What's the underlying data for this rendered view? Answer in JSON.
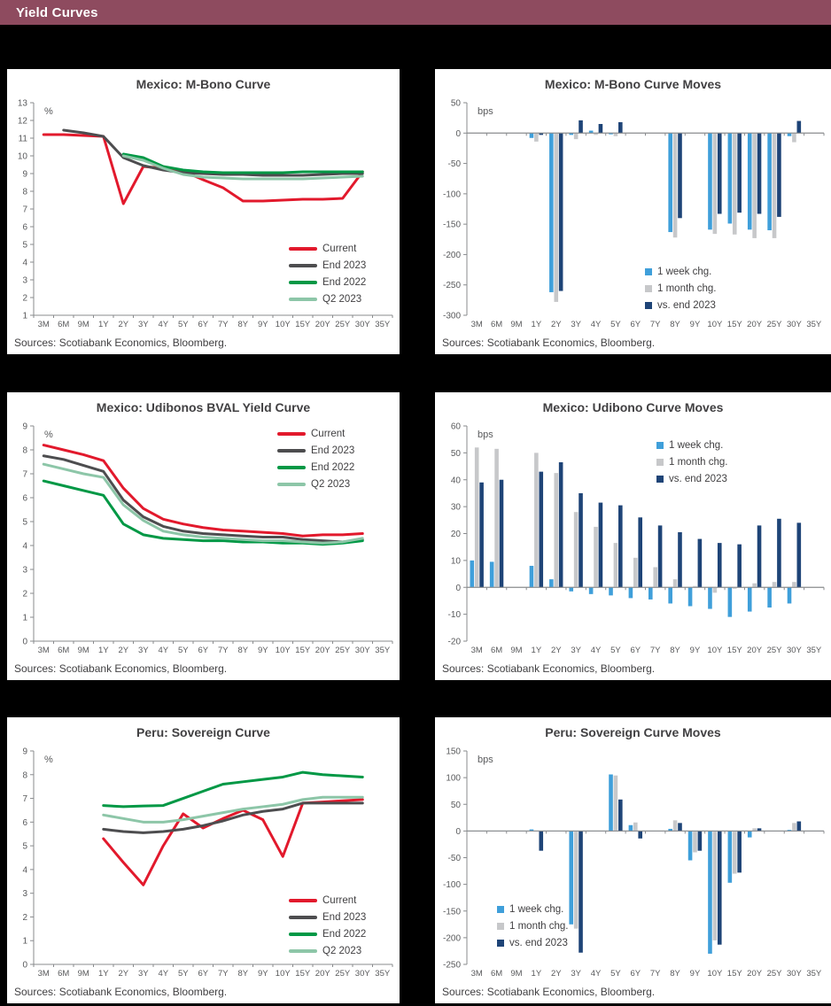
{
  "header": {
    "title": "Yield Curves",
    "bg_color": "#8e4b5f",
    "text_color": "#ffffff"
  },
  "palette": {
    "red": "#e2192c",
    "dark_gray": "#4d4d4f",
    "green": "#009845",
    "light_green": "#8dc6a8",
    "light_blue": "#3f9fda",
    "bar_gray": "#c7c8ca",
    "navy": "#1e4477",
    "axis": "#898b8e",
    "tick_text": "#58595b",
    "title_text": "#414042"
  },
  "chart_data": [
    {
      "type": "line",
      "title": "Mexico: M-Bono Curve",
      "unit": "%",
      "ylim": [
        1,
        13
      ],
      "ytick": 1,
      "grid": false,
      "legend_position": "inside-bottom-right",
      "legend_xy": [
        318,
        196
      ],
      "sources": "Sources: Scotiabank Economics, Bloomberg.",
      "categories": [
        "3M",
        "6M",
        "9M",
        "1Y",
        "2Y",
        "3Y",
        "4Y",
        "5Y",
        "6Y",
        "7Y",
        "8Y",
        "9Y",
        "10Y",
        "15Y",
        "20Y",
        "25Y",
        "30Y",
        "35Y"
      ],
      "series": [
        {
          "name": "Current",
          "color": "red",
          "values": [
            11.2,
            11.2,
            11.15,
            11.1,
            7.3,
            9.4,
            9.3,
            9.15,
            8.65,
            8.2,
            7.45,
            7.45,
            7.5,
            7.55,
            7.55,
            7.6,
            9.1,
            null
          ]
        },
        {
          "name": "End 2023",
          "color": "dark_gray",
          "values": [
            null,
            11.45,
            11.3,
            11.1,
            9.9,
            9.45,
            9.2,
            9.05,
            9.0,
            8.95,
            8.95,
            8.9,
            8.9,
            8.9,
            8.95,
            9.0,
            9.0,
            null
          ]
        },
        {
          "name": "End 2022",
          "color": "green",
          "values": [
            null,
            null,
            null,
            null,
            10.1,
            9.9,
            9.4,
            9.2,
            9.1,
            9.05,
            9.05,
            9.05,
            9.05,
            9.1,
            9.1,
            9.1,
            9.1,
            null
          ]
        },
        {
          "name": "Q2 2023",
          "color": "light_green",
          "values": [
            null,
            null,
            null,
            null,
            10.0,
            9.75,
            9.3,
            8.95,
            8.8,
            8.75,
            8.7,
            8.7,
            8.7,
            8.7,
            8.75,
            8.8,
            8.85,
            null
          ]
        }
      ]
    },
    {
      "type": "bar",
      "title": "Mexico: M-Bono Curve Moves",
      "unit": "bps",
      "ylim": [
        -300,
        50
      ],
      "ytick": 50,
      "grid": false,
      "legend_position": "inside-lower-right",
      "legend_xy": [
        237,
        222
      ],
      "sources": "Sources: Scotiabank Economics, Bloomberg.",
      "categories": [
        "3M",
        "6M",
        "9M",
        "1Y",
        "2Y",
        "3Y",
        "4Y",
        "5Y",
        "6Y",
        "7Y",
        "8Y",
        "9Y",
        "10Y",
        "15Y",
        "20Y",
        "25Y",
        "30Y",
        "35Y"
      ],
      "series": [
        {
          "name": "1 week chg.",
          "color": "light_blue",
          "values": [
            null,
            null,
            null,
            -8,
            -262,
            -3,
            4,
            -2,
            null,
            null,
            -163,
            null,
            -159,
            -149,
            -159,
            -160,
            -5,
            null
          ]
        },
        {
          "name": "1 month chg.",
          "color": "bar_gray",
          "values": [
            null,
            null,
            null,
            -14,
            -278,
            -10,
            -3,
            -5,
            null,
            null,
            -172,
            null,
            -166,
            -167,
            -173,
            -173,
            -15,
            null
          ]
        },
        {
          "name": "vs. end 2023",
          "color": "navy",
          "values": [
            null,
            null,
            null,
            -3,
            -260,
            21,
            15,
            18,
            null,
            null,
            -140,
            null,
            -133,
            -131,
            -133,
            -138,
            20,
            null
          ]
        }
      ]
    },
    {
      "type": "line",
      "title": "Mexico: Udibonos BVAL Yield Curve",
      "unit": "%",
      "ylim": [
        0,
        9
      ],
      "ytick": 1,
      "grid": false,
      "legend_position": "inside-top-right",
      "legend_xy": [
        305,
        40
      ],
      "sources": "Sources: Scotiabank Economics, Bloomberg.",
      "categories": [
        "3M",
        "6M",
        "9M",
        "1Y",
        "2Y",
        "3Y",
        "4Y",
        "5Y",
        "6Y",
        "7Y",
        "8Y",
        "9Y",
        "10Y",
        "15Y",
        "20Y",
        "25Y",
        "30Y",
        "35Y"
      ],
      "series": [
        {
          "name": "Current",
          "color": "red",
          "values": [
            8.2,
            8.0,
            7.8,
            7.55,
            6.4,
            5.55,
            5.1,
            4.9,
            4.75,
            4.65,
            4.6,
            4.55,
            4.5,
            4.4,
            4.45,
            4.45,
            4.5,
            null
          ]
        },
        {
          "name": "End 2023",
          "color": "dark_gray",
          "values": [
            7.75,
            7.6,
            7.35,
            7.1,
            5.9,
            5.2,
            4.8,
            4.6,
            4.5,
            4.45,
            4.4,
            4.35,
            4.35,
            4.25,
            4.2,
            4.15,
            4.25,
            null
          ]
        },
        {
          "name": "End 2022",
          "color": "green",
          "values": [
            6.7,
            6.5,
            6.3,
            6.1,
            4.9,
            4.45,
            4.3,
            4.25,
            4.2,
            4.2,
            4.15,
            4.15,
            4.1,
            4.1,
            4.05,
            4.1,
            4.2,
            null
          ]
        },
        {
          "name": "Q2 2023",
          "color": "light_green",
          "values": [
            7.4,
            7.2,
            7.0,
            6.85,
            5.7,
            5.05,
            4.6,
            4.45,
            4.35,
            4.3,
            4.25,
            4.2,
            4.2,
            4.15,
            4.1,
            4.15,
            4.3,
            null
          ]
        }
      ]
    },
    {
      "type": "bar",
      "title": "Mexico: Udibono Curve Moves",
      "unit": "bps",
      "ylim": [
        -20,
        60
      ],
      "ytick": 10,
      "grid": false,
      "legend_position": "inside-top-right",
      "legend_xy": [
        250,
        53
      ],
      "sources": "Sources: Scotiabank Economics, Bloomberg.",
      "categories": [
        "3M",
        "6M",
        "9M",
        "1Y",
        "2Y",
        "3Y",
        "4Y",
        "5Y",
        "6Y",
        "7Y",
        "8Y",
        "9Y",
        "10Y",
        "15Y",
        "20Y",
        "25Y",
        "30Y",
        "35Y"
      ],
      "series": [
        {
          "name": "1 week chg.",
          "color": "light_blue",
          "values": [
            10,
            9.5,
            null,
            8,
            3,
            -1.5,
            -2.5,
            -3,
            -4,
            -4.5,
            -6,
            -7,
            -8,
            -11,
            -9,
            -7.5,
            -6,
            null
          ]
        },
        {
          "name": "1 month chg.",
          "color": "bar_gray",
          "values": [
            52,
            51.5,
            null,
            50,
            42.5,
            28,
            22.5,
            16.5,
            11,
            7.5,
            3,
            0.5,
            -2,
            -0.5,
            1.5,
            2,
            2,
            null
          ]
        },
        {
          "name": "vs. end 2023",
          "color": "navy",
          "values": [
            39,
            40,
            null,
            43,
            46.5,
            35,
            31.5,
            30.5,
            26,
            23,
            20.5,
            18,
            16.5,
            16,
            23,
            25.5,
            24,
            null
          ]
        }
      ]
    },
    {
      "type": "line",
      "title": "Peru: Sovereign Curve",
      "unit": "%",
      "ylim": [
        0,
        9
      ],
      "ytick": 1,
      "grid": false,
      "legend_position": "inside-bottom-right",
      "legend_xy": [
        318,
        200
      ],
      "sources": "Sources: Scotiabank Economics, Bloomberg.",
      "categories": [
        "3M",
        "6M",
        "9M",
        "1Y",
        "2Y",
        "3Y",
        "4Y",
        "5Y",
        "6Y",
        "7Y",
        "8Y",
        "9Y",
        "10Y",
        "15Y",
        "20Y",
        "25Y",
        "30Y",
        "35Y"
      ],
      "series": [
        {
          "name": "Current",
          "color": "red",
          "values": [
            null,
            null,
            null,
            5.3,
            4.3,
            3.35,
            5.0,
            6.35,
            5.75,
            6.15,
            6.5,
            6.1,
            4.55,
            6.8,
            6.85,
            6.9,
            6.95,
            null
          ]
        },
        {
          "name": "End 2023",
          "color": "dark_gray",
          "values": [
            null,
            null,
            null,
            5.7,
            5.6,
            5.55,
            5.6,
            5.7,
            5.85,
            6.05,
            6.3,
            6.45,
            6.55,
            6.8,
            6.8,
            6.8,
            6.8,
            null
          ]
        },
        {
          "name": "End 2022",
          "color": "green",
          "values": [
            null,
            null,
            null,
            6.7,
            6.65,
            6.68,
            6.7,
            7.0,
            7.3,
            7.6,
            7.7,
            7.8,
            7.9,
            8.1,
            8.0,
            7.95,
            7.9,
            null
          ]
        },
        {
          "name": "Q2 2023",
          "color": "light_green",
          "values": [
            null,
            null,
            null,
            6.3,
            6.15,
            6.0,
            6.0,
            6.1,
            6.25,
            6.4,
            6.55,
            6.65,
            6.75,
            6.95,
            7.05,
            7.05,
            7.05,
            null
          ]
        }
      ]
    },
    {
      "type": "bar",
      "title": "Peru: Sovereign Curve Moves",
      "unit": "bps",
      "ylim": [
        -250,
        150
      ],
      "ytick": 50,
      "grid": false,
      "legend_position": "inside-lower-left",
      "legend_xy": [
        70,
        210
      ],
      "sources": "Sources: Scotiabank Economics, Bloomberg.",
      "categories": [
        "3M",
        "6M",
        "9M",
        "1Y",
        "2Y",
        "3Y",
        "4Y",
        "5Y",
        "6Y",
        "7Y",
        "8Y",
        "9Y",
        "10Y",
        "15Y",
        "20Y",
        "25Y",
        "30Y",
        "35Y"
      ],
      "series": [
        {
          "name": "1 week chg.",
          "color": "light_blue",
          "values": [
            null,
            null,
            null,
            3,
            null,
            -175,
            null,
            106,
            11,
            null,
            4,
            -55,
            -230,
            -97,
            -12,
            null,
            2,
            null
          ]
        },
        {
          "name": "1 month chg.",
          "color": "bar_gray",
          "values": [
            null,
            null,
            null,
            null,
            null,
            -183,
            null,
            104,
            16,
            null,
            20,
            -40,
            -205,
            -80,
            5,
            null,
            15,
            null
          ]
        },
        {
          "name": "vs. end 2023",
          "color": "navy",
          "values": [
            null,
            null,
            null,
            -37,
            null,
            -228,
            null,
            59,
            -14,
            null,
            15,
            -37,
            -213,
            -78,
            5,
            null,
            18,
            null
          ]
        }
      ]
    }
  ]
}
